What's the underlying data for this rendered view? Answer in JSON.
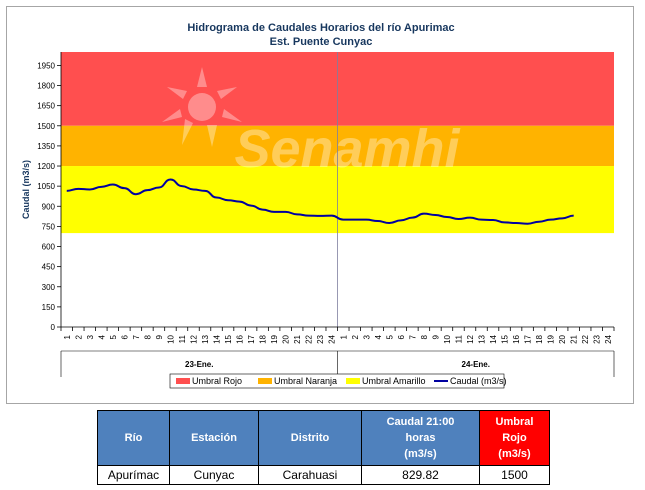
{
  "chart_data": {
    "type": "line",
    "title": "Hidrograma de Caudales Horarios del río Apurimac",
    "subtitle": "Est. Puente Cunyac",
    "ylabel": "Caudal  (m3/s)",
    "ylim": [
      0,
      2050
    ],
    "y_ticks": [
      0,
      150,
      300,
      450,
      600,
      750,
      900,
      1050,
      1200,
      1350,
      1500,
      1650,
      1800,
      1950
    ],
    "x_hour_labels": [
      "1",
      "2",
      "3",
      "4",
      "5",
      "6",
      "7",
      "8",
      "9",
      "10",
      "11",
      "12",
      "13",
      "14",
      "15",
      "16",
      "17",
      "18",
      "19",
      "20",
      "21",
      "22",
      "23",
      "24",
      "1",
      "2",
      "3",
      "4",
      "5",
      "6",
      "7",
      "8",
      "9",
      "10",
      "11",
      "12",
      "13",
      "14",
      "15",
      "16",
      "17",
      "18",
      "19",
      "20",
      "21",
      "22",
      "23",
      "24"
    ],
    "day_labels": [
      "23-Ene.",
      "24-Ene."
    ],
    "thresholds": [
      {
        "name": "Umbral Rojo",
        "from": 1500,
        "to": 2050,
        "color": "#ff4f4f"
      },
      {
        "name": "Umbral Naranja",
        "from": 1200,
        "to": 1500,
        "color": "#ffb300"
      },
      {
        "name": "Umbral Amarillo",
        "from": 700,
        "to": 1200,
        "color": "#ffff00"
      }
    ],
    "series": [
      {
        "name": "Caudal (m3/s)",
        "color": "#0000a0",
        "values": [
          1015,
          1030,
          1025,
          1045,
          1062,
          1035,
          990,
          1020,
          1040,
          1100,
          1050,
          1025,
          1015,
          965,
          945,
          935,
          905,
          875,
          858,
          858,
          840,
          830,
          828,
          830,
          800,
          800,
          800,
          790,
          775,
          795,
          815,
          845,
          835,
          820,
          805,
          815,
          800,
          798,
          780,
          775,
          770,
          785,
          800,
          810,
          829.82
        ]
      }
    ],
    "legend_position": "bottom",
    "grid": false,
    "watermark": "Senamhi"
  },
  "table": {
    "headers": {
      "rio": "Río",
      "estacion": "Estación",
      "distrito": "Distrito",
      "caudal_l1": "Caudal 21:00",
      "caudal_l2": "horas",
      "caudal_l3": "(m3/s)",
      "umbral_l1": "Umbral",
      "umbral_l2": "Rojo",
      "umbral_l3": "(m3/s)"
    },
    "row": {
      "rio": "Apurímac",
      "estacion": "Cunyac",
      "distrito": "Carahuasi",
      "caudal": "829.82",
      "umbral": "1500"
    }
  }
}
